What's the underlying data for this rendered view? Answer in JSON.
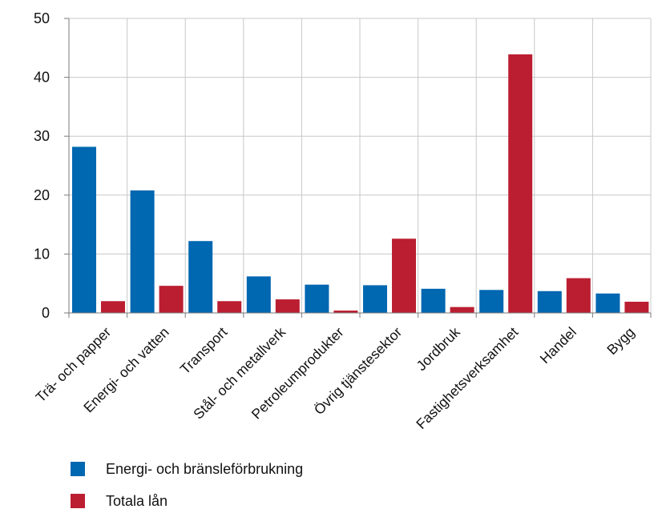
{
  "chart_data": {
    "type": "bar",
    "title": "",
    "xlabel": "",
    "ylabel": "",
    "ylim": [
      0,
      50
    ],
    "yticks": [
      0,
      10,
      20,
      30,
      40,
      50
    ],
    "grid": true,
    "legend_position": "bottom-left",
    "categories": [
      "Trä- och papper",
      "Energi- och vatten",
      "Transport",
      "Stål- och metallverk",
      "Petroleumprodukter",
      "Övrig tjänstesektor",
      "Jordbruk",
      "Fastighetsverksamhet",
      "Handel",
      "Bygg"
    ],
    "series": [
      {
        "name": "Energi- och bränsleförbrukning",
        "color": "#0067b1",
        "values": [
          28.2,
          20.8,
          12.2,
          6.2,
          4.8,
          4.7,
          4.1,
          3.9,
          3.7,
          3.3
        ]
      },
      {
        "name": "Totala lån",
        "color": "#bb1e31",
        "values": [
          2.0,
          4.6,
          2.0,
          2.3,
          0.4,
          12.6,
          1.0,
          43.9,
          5.9,
          1.9
        ]
      }
    ]
  }
}
